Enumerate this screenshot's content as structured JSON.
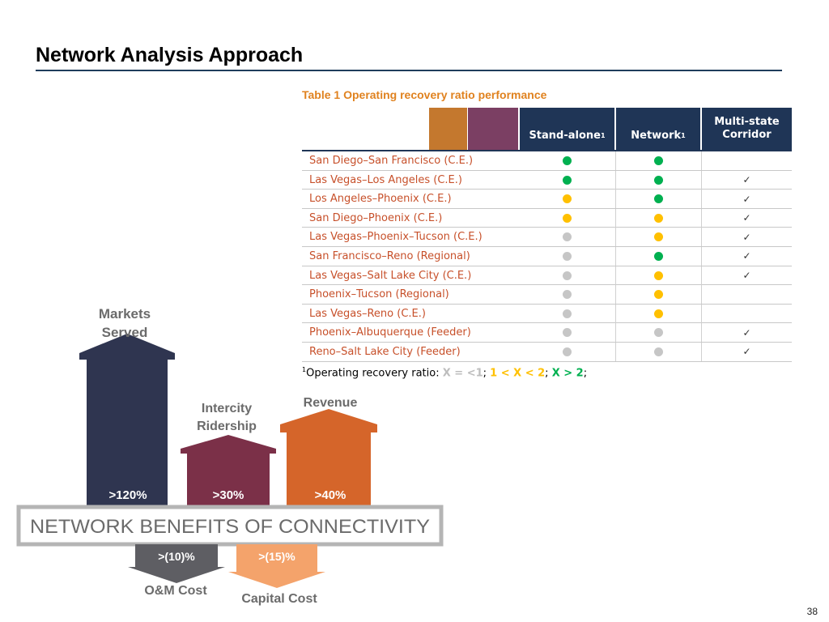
{
  "slide": {
    "title": "Network Analysis Approach",
    "page_number": "38"
  },
  "table": {
    "caption": "Table 1 Operating recovery ratio performance",
    "headers": {
      "col1": "Stand-alone",
      "col2": "Network",
      "col3_line1": "Multi-state",
      "col3_line2": "Corridor",
      "superscript": "1"
    },
    "colors": {
      "swatch_orange": "#c4782e",
      "swatch_purple": "#7b3f63",
      "header_bg": "#1f3556",
      "gray": "#c6c6c6",
      "yellow": "#ffc000",
      "green": "#00b050"
    },
    "rows": [
      {
        "name": "San Diego–San Francisco (C.E.)",
        "standalone": "green",
        "network": "green",
        "multistate": ""
      },
      {
        "name": "Las Vegas–Los Angeles (C.E.)",
        "standalone": "green",
        "network": "green",
        "multistate": "✓"
      },
      {
        "name": "Los Angeles–Phoenix (C.E.)",
        "standalone": "yellow",
        "network": "green",
        "multistate": "✓"
      },
      {
        "name": "San Diego–Phoenix (C.E.)",
        "standalone": "yellow",
        "network": "yellow",
        "multistate": "✓"
      },
      {
        "name": "Las Vegas–Phoenix–Tucson (C.E.)",
        "standalone": "gray",
        "network": "yellow",
        "multistate": "✓"
      },
      {
        "name": "San Francisco–Reno (Regional)",
        "standalone": "gray",
        "network": "green",
        "multistate": "✓"
      },
      {
        "name": "Las Vegas–Salt Lake City (C.E.)",
        "standalone": "gray",
        "network": "yellow",
        "multistate": "✓"
      },
      {
        "name": "Phoenix–Tucson (Regional)",
        "standalone": "gray",
        "network": "yellow",
        "multistate": ""
      },
      {
        "name": "Las Vegas–Reno (C.E.)",
        "standalone": "gray",
        "network": "yellow",
        "multistate": ""
      },
      {
        "name": "Phoenix–Albuquerque (Feeder)",
        "standalone": "gray",
        "network": "gray",
        "multistate": "✓"
      },
      {
        "name": "Reno–Salt Lake City (Feeder)",
        "standalone": "gray",
        "network": "gray",
        "multistate": "✓"
      }
    ]
  },
  "footnote": {
    "marker": "1",
    "text": "Operating recovery ratio: ",
    "range1": "X = <1",
    "sep1": "; ",
    "range2": "1 < X < 2",
    "sep2": "; ",
    "range3": "X > 2",
    "sep3": ";"
  },
  "infographic": {
    "banner": "NETWORK BENEFITS OF CONNECTIVITY",
    "markets_line1": "Markets",
    "markets_line2": "Served",
    "markets_value": ">120%",
    "ridership_line1": "Intercity",
    "ridership_line2": "Ridership",
    "ridership_value": ">30%",
    "revenue_label": "Revenue",
    "revenue_value": ">40%",
    "om_value": ">(10)%",
    "om_label": "O&M Cost",
    "capital_value": ">(15)%",
    "capital_label": "Capital Cost",
    "colors": {
      "markets": "#2f3550",
      "ridership": "#7b3048",
      "revenue": "#d5652a",
      "om": "#5e5e63",
      "capital": "#f4a36b",
      "label_gray": "#6b6b6b"
    }
  }
}
